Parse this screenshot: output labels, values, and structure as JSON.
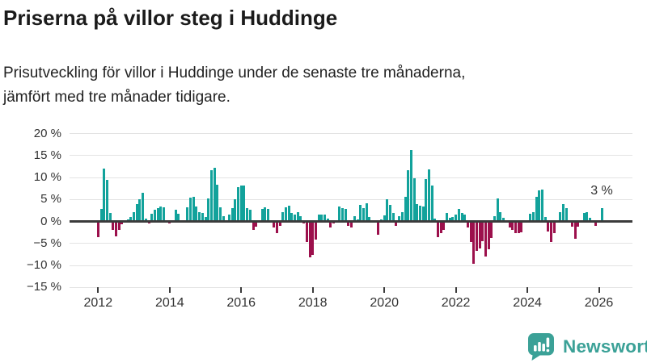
{
  "header": {
    "title": "Priserna på villor steg i Huddinge",
    "subtitle_line1": "Prisutveckling för villor i Huddinge under de senaste tre månaderna,",
    "subtitle_line2": "jämfört med tre månader tidigare."
  },
  "chart_data": {
    "type": "bar",
    "title": "Priserna på villor steg i Huddinge",
    "subtitle": "Prisutveckling för villor i Huddinge under de senaste tre månaderna, jämfört med tre månader tidigare.",
    "unit": "%",
    "frequency": "monthly",
    "start_month": "2012-01",
    "end_month": "2026-02",
    "ylim": [
      -15,
      20
    ],
    "grid": true,
    "y_tick_labels": [
      "20 %",
      "15 %",
      "10 %",
      "5 %",
      "0 %",
      "−5 %",
      "−10 %",
      "−15 %"
    ],
    "y_ticks": [
      20,
      15,
      10,
      5,
      0,
      -5,
      -10,
      -15
    ],
    "x_tick_labels": [
      "2012",
      "2014",
      "2016",
      "2018",
      "2020",
      "2022",
      "2024",
      "2026"
    ],
    "x_ticks": [
      2012,
      2014,
      2016,
      2018,
      2020,
      2022,
      2024,
      2026
    ],
    "annotation": "3 %",
    "annotation_value": 3,
    "colors": {
      "positive": "#12a29b",
      "negative": "#9c104c",
      "gridline": "#e3e3e3",
      "zero_line": "#3b3b3b",
      "axis_text": "#333333"
    },
    "series": [
      {
        "year": 2012,
        "values": [
          -3.7,
          2.7,
          12.0,
          9.3,
          1.8,
          -2.1,
          -3.5,
          -2.1,
          -0.8,
          -0.4,
          0.4,
          0.9
        ]
      },
      {
        "year": 2013,
        "values": [
          2.0,
          3.8,
          5.0,
          6.4,
          0.6,
          -0.5,
          1.7,
          2.6,
          3.0,
          3.4,
          3.1,
          0
        ]
      },
      {
        "year": 2014,
        "values": [
          -0.6,
          0,
          2.6,
          1.6,
          0,
          0,
          3.2,
          5.4,
          5.6,
          3.3,
          2.1,
          1.8
        ]
      },
      {
        "year": 2015,
        "values": [
          0.9,
          5.1,
          11.6,
          12.1,
          8.3,
          3.1,
          1.1,
          0.2,
          1.5,
          3.0,
          4.9,
          7.7
        ]
      },
      {
        "year": 2016,
        "values": [
          8.1,
          8.0,
          3.0,
          2.5,
          -2.0,
          -1.2,
          0.2,
          2.8,
          3.2,
          2.7,
          0,
          -1.5
        ]
      },
      {
        "year": 2017,
        "values": [
          -2.8,
          -1.0,
          2.1,
          3.2,
          3.5,
          1.8,
          1.5,
          2.0,
          1.2,
          -0.5,
          -4.8,
          -8.2
        ]
      },
      {
        "year": 2018,
        "values": [
          -7.7,
          -4.3,
          1.5,
          1.5,
          1.4,
          0.6,
          -1.5,
          -0.6,
          0.2,
          3.3,
          3.0,
          2.7
        ]
      },
      {
        "year": 2019,
        "values": [
          -1.0,
          -1.5,
          1.2,
          0.3,
          3.6,
          2.9,
          4.0,
          1.0,
          0,
          -0.3,
          -3.1,
          0.3
        ]
      },
      {
        "year": 2020,
        "values": [
          1.3,
          4.9,
          3.7,
          1.8,
          -1.0,
          1.2,
          2.0,
          5.5,
          11.5,
          16.1,
          9.7,
          3.9
        ]
      },
      {
        "year": 2021,
        "values": [
          3.5,
          3.3,
          9.5,
          11.7,
          8.0,
          0.5,
          -3.6,
          -2.7,
          -2.1,
          1.8,
          0.8,
          1.0
        ]
      },
      {
        "year": 2022,
        "values": [
          1.4,
          2.7,
          1.8,
          1.5,
          -1.5,
          -4.8,
          -9.8,
          -6.8,
          -6.3,
          -4.6,
          -8.0,
          -6.5
        ]
      },
      {
        "year": 2023,
        "values": [
          -3.9,
          1.2,
          5.1,
          2.1,
          0.8,
          0,
          -1.4,
          -2.0,
          -2.7,
          -2.7,
          -2.5,
          0
        ]
      },
      {
        "year": 2024,
        "values": [
          0,
          1.6,
          2.1,
          5.5,
          7.0,
          7.1,
          0.9,
          -2.4,
          -4.8,
          -2.7,
          0,
          2.1
        ]
      },
      {
        "year": 2025,
        "values": [
          3.9,
          2.9,
          0,
          -1.2,
          -4.0,
          -1.2,
          0,
          1.9,
          2.0,
          0.7,
          0,
          -1.0
        ]
      },
      {
        "year": 2026,
        "values": [
          0,
          3.0
        ]
      }
    ]
  },
  "footer": {
    "brand": "Newsworthy",
    "logo_color": "#3ba197"
  }
}
